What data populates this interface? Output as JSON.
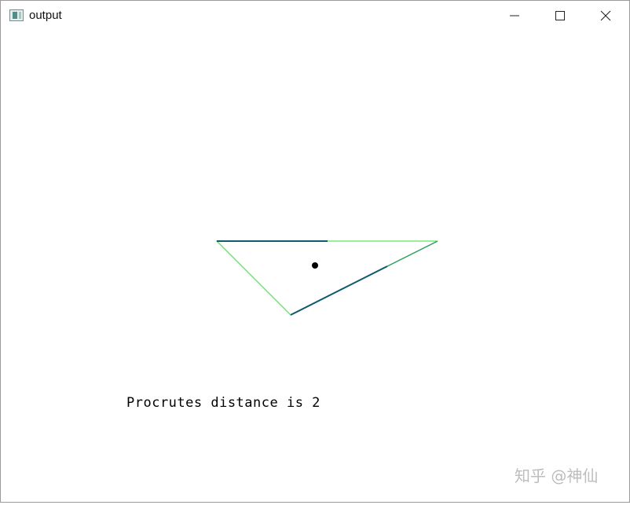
{
  "window": {
    "title": "output",
    "icons": {
      "app": "app-window-icon",
      "minimize": "minimize-icon",
      "maximize": "maximize-icon",
      "close": "close-icon"
    }
  },
  "canvas": {
    "message": "Procrutes distance is 2",
    "colors": {
      "triangle_a": "#5ee85e",
      "triangle_b": "#0f5a6e",
      "centroid": "#000000",
      "background": "#ffffff"
    }
  },
  "watermark": "知乎 @神仙"
}
